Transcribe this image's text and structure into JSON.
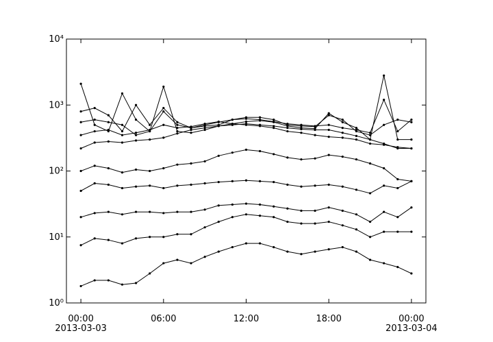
{
  "chart_data": {
    "type": "line",
    "log_y": true,
    "marker": "dot",
    "x": [
      "2013-03-03 00:00",
      "2013-03-03 01:00",
      "2013-03-03 02:00",
      "2013-03-03 03:00",
      "2013-03-03 04:00",
      "2013-03-03 05:00",
      "2013-03-03 06:00",
      "2013-03-03 07:00",
      "2013-03-03 08:00",
      "2013-03-03 09:00",
      "2013-03-03 10:00",
      "2013-03-03 11:00",
      "2013-03-03 12:00",
      "2013-03-03 13:00",
      "2013-03-03 14:00",
      "2013-03-03 15:00",
      "2013-03-03 16:00",
      "2013-03-03 17:00",
      "2013-03-03 18:00",
      "2013-03-03 19:00",
      "2013-03-03 20:00",
      "2013-03-03 21:00",
      "2013-03-03 22:00",
      "2013-03-03 23:00",
      "2013-03-04 00:00"
    ],
    "series": [
      {
        "color": "#000000",
        "values": [
          1.8,
          2.2,
          2.2,
          1.9,
          2.0,
          2.8,
          4.0,
          4.5,
          4.0,
          5.0,
          6.0,
          7.0,
          8.0,
          8.0,
          7.0,
          6.0,
          5.5,
          6.0,
          6.5,
          7.0,
          6.0,
          4.5,
          4.0,
          3.5,
          2.8
        ]
      },
      {
        "color": "#000000",
        "values": [
          7.5,
          9.5,
          9.0,
          8.0,
          9.5,
          10,
          10,
          11,
          11,
          14,
          17,
          20,
          22,
          21,
          20,
          17,
          16,
          16,
          17,
          15,
          13,
          10,
          12,
          12,
          12
        ]
      },
      {
        "color": "#000000",
        "values": [
          20,
          23,
          24,
          22,
          24,
          24,
          23,
          24,
          24,
          26,
          30,
          31,
          32,
          31,
          29,
          27,
          25,
          25,
          28,
          25,
          22,
          17,
          24,
          20,
          28
        ]
      },
      {
        "color": "#000000",
        "values": [
          50,
          65,
          62,
          55,
          58,
          60,
          55,
          60,
          62,
          65,
          68,
          70,
          72,
          70,
          68,
          62,
          58,
          60,
          62,
          58,
          52,
          46,
          60,
          55,
          70
        ]
      },
      {
        "color": "#000000",
        "values": [
          100,
          120,
          110,
          95,
          105,
          100,
          110,
          125,
          130,
          140,
          170,
          190,
          210,
          200,
          180,
          160,
          150,
          155,
          175,
          165,
          150,
          130,
          110,
          75,
          70
        ]
      },
      {
        "color": "#000000",
        "values": [
          220,
          270,
          280,
          270,
          290,
          300,
          320,
          370,
          420,
          450,
          480,
          500,
          520,
          500,
          480,
          450,
          430,
          420,
          420,
          380,
          340,
          300,
          260,
          220,
          220
        ]
      },
      {
        "color": "#000000",
        "values": [
          550,
          600,
          550,
          500,
          350,
          400,
          800,
          500,
          450,
          480,
          500,
          600,
          650,
          650,
          600,
          500,
          480,
          470,
          700,
          600,
          400,
          350,
          500,
          600,
          550
        ]
      },
      {
        "color": "#000000",
        "values": [
          2100,
          500,
          400,
          1500,
          600,
          400,
          1900,
          400,
          380,
          420,
          480,
          520,
          560,
          580,
          550,
          480,
          450,
          440,
          750,
          550,
          450,
          300,
          2800,
          300,
          300
        ]
      },
      {
        "color": "#000000",
        "values": [
          800,
          900,
          700,
          400,
          1000,
          500,
          900,
          550,
          450,
          500,
          550,
          600,
          620,
          600,
          560,
          520,
          500,
          480,
          500,
          450,
          420,
          380,
          1200,
          400,
          600
        ]
      },
      {
        "color": "#000000",
        "values": [
          350,
          400,
          420,
          350,
          380,
          420,
          500,
          450,
          470,
          520,
          560,
          520,
          500,
          480,
          450,
          400,
          380,
          350,
          330,
          320,
          300,
          260,
          250,
          230,
          220
        ]
      }
    ],
    "xlim": [
      "2013-03-02 22:57",
      "2013-03-04 01:03"
    ],
    "xticks": [
      {
        "value": "2013-03-03 00:00",
        "label": "00:00\n2013-03-03"
      },
      {
        "value": "2013-03-03 06:00",
        "label": "06:00"
      },
      {
        "value": "2013-03-03 12:00",
        "label": "12:00"
      },
      {
        "value": "2013-03-03 18:00",
        "label": "18:00"
      },
      {
        "value": "2013-03-04 00:00",
        "label": "00:00\n2013-03-04"
      }
    ],
    "ylim": [
      1,
      10000
    ],
    "yticks": [
      {
        "value": 1,
        "label": "10⁰"
      },
      {
        "value": 10,
        "label": "10¹"
      },
      {
        "value": 100,
        "label": "10²"
      },
      {
        "value": 1000,
        "label": "10³"
      },
      {
        "value": 10000,
        "label": "10⁴"
      }
    ]
  }
}
